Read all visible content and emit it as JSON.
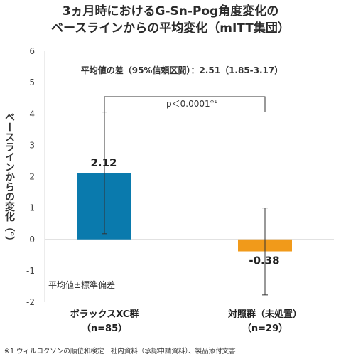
{
  "chart_data": {
    "type": "bar",
    "title_line1": "3ヵ月時におけるG-Sn-Pog角度変化の",
    "title_line2": "ベースラインからの平均変化（mITT集団）",
    "ylabel": "ベースラインからの変化（°）",
    "ylim": [
      -2,
      6
    ],
    "yticks": [
      "6",
      "5",
      "4",
      "3",
      "2",
      "1",
      "0",
      "-1",
      "-2"
    ],
    "categories": [
      {
        "line1": "ボラックスXC群",
        "line2": "（n=85）"
      },
      {
        "line1": "対照群（未処置）",
        "line2": "（n=29）"
      }
    ],
    "values": [
      2.12,
      -0.38
    ],
    "value_labels": [
      "2.12",
      "-0.38"
    ],
    "error_low": [
      0.18,
      -1.77
    ],
    "error_high": [
      4.06,
      1.0
    ],
    "colors": [
      "#0a7aad",
      "#f19a1a"
    ],
    "difference_text": "平均値の差（95%信頼区間）：2.51（1.85-3.17）",
    "p_value_text": "p＜0.0001",
    "p_value_note": "※1",
    "stat_note": "平均値±標準偏差",
    "grid": false
  },
  "footnote": "※1 ウィルコクソンの順位和検定　社内資料（承認申請資料）、製品添付文書"
}
